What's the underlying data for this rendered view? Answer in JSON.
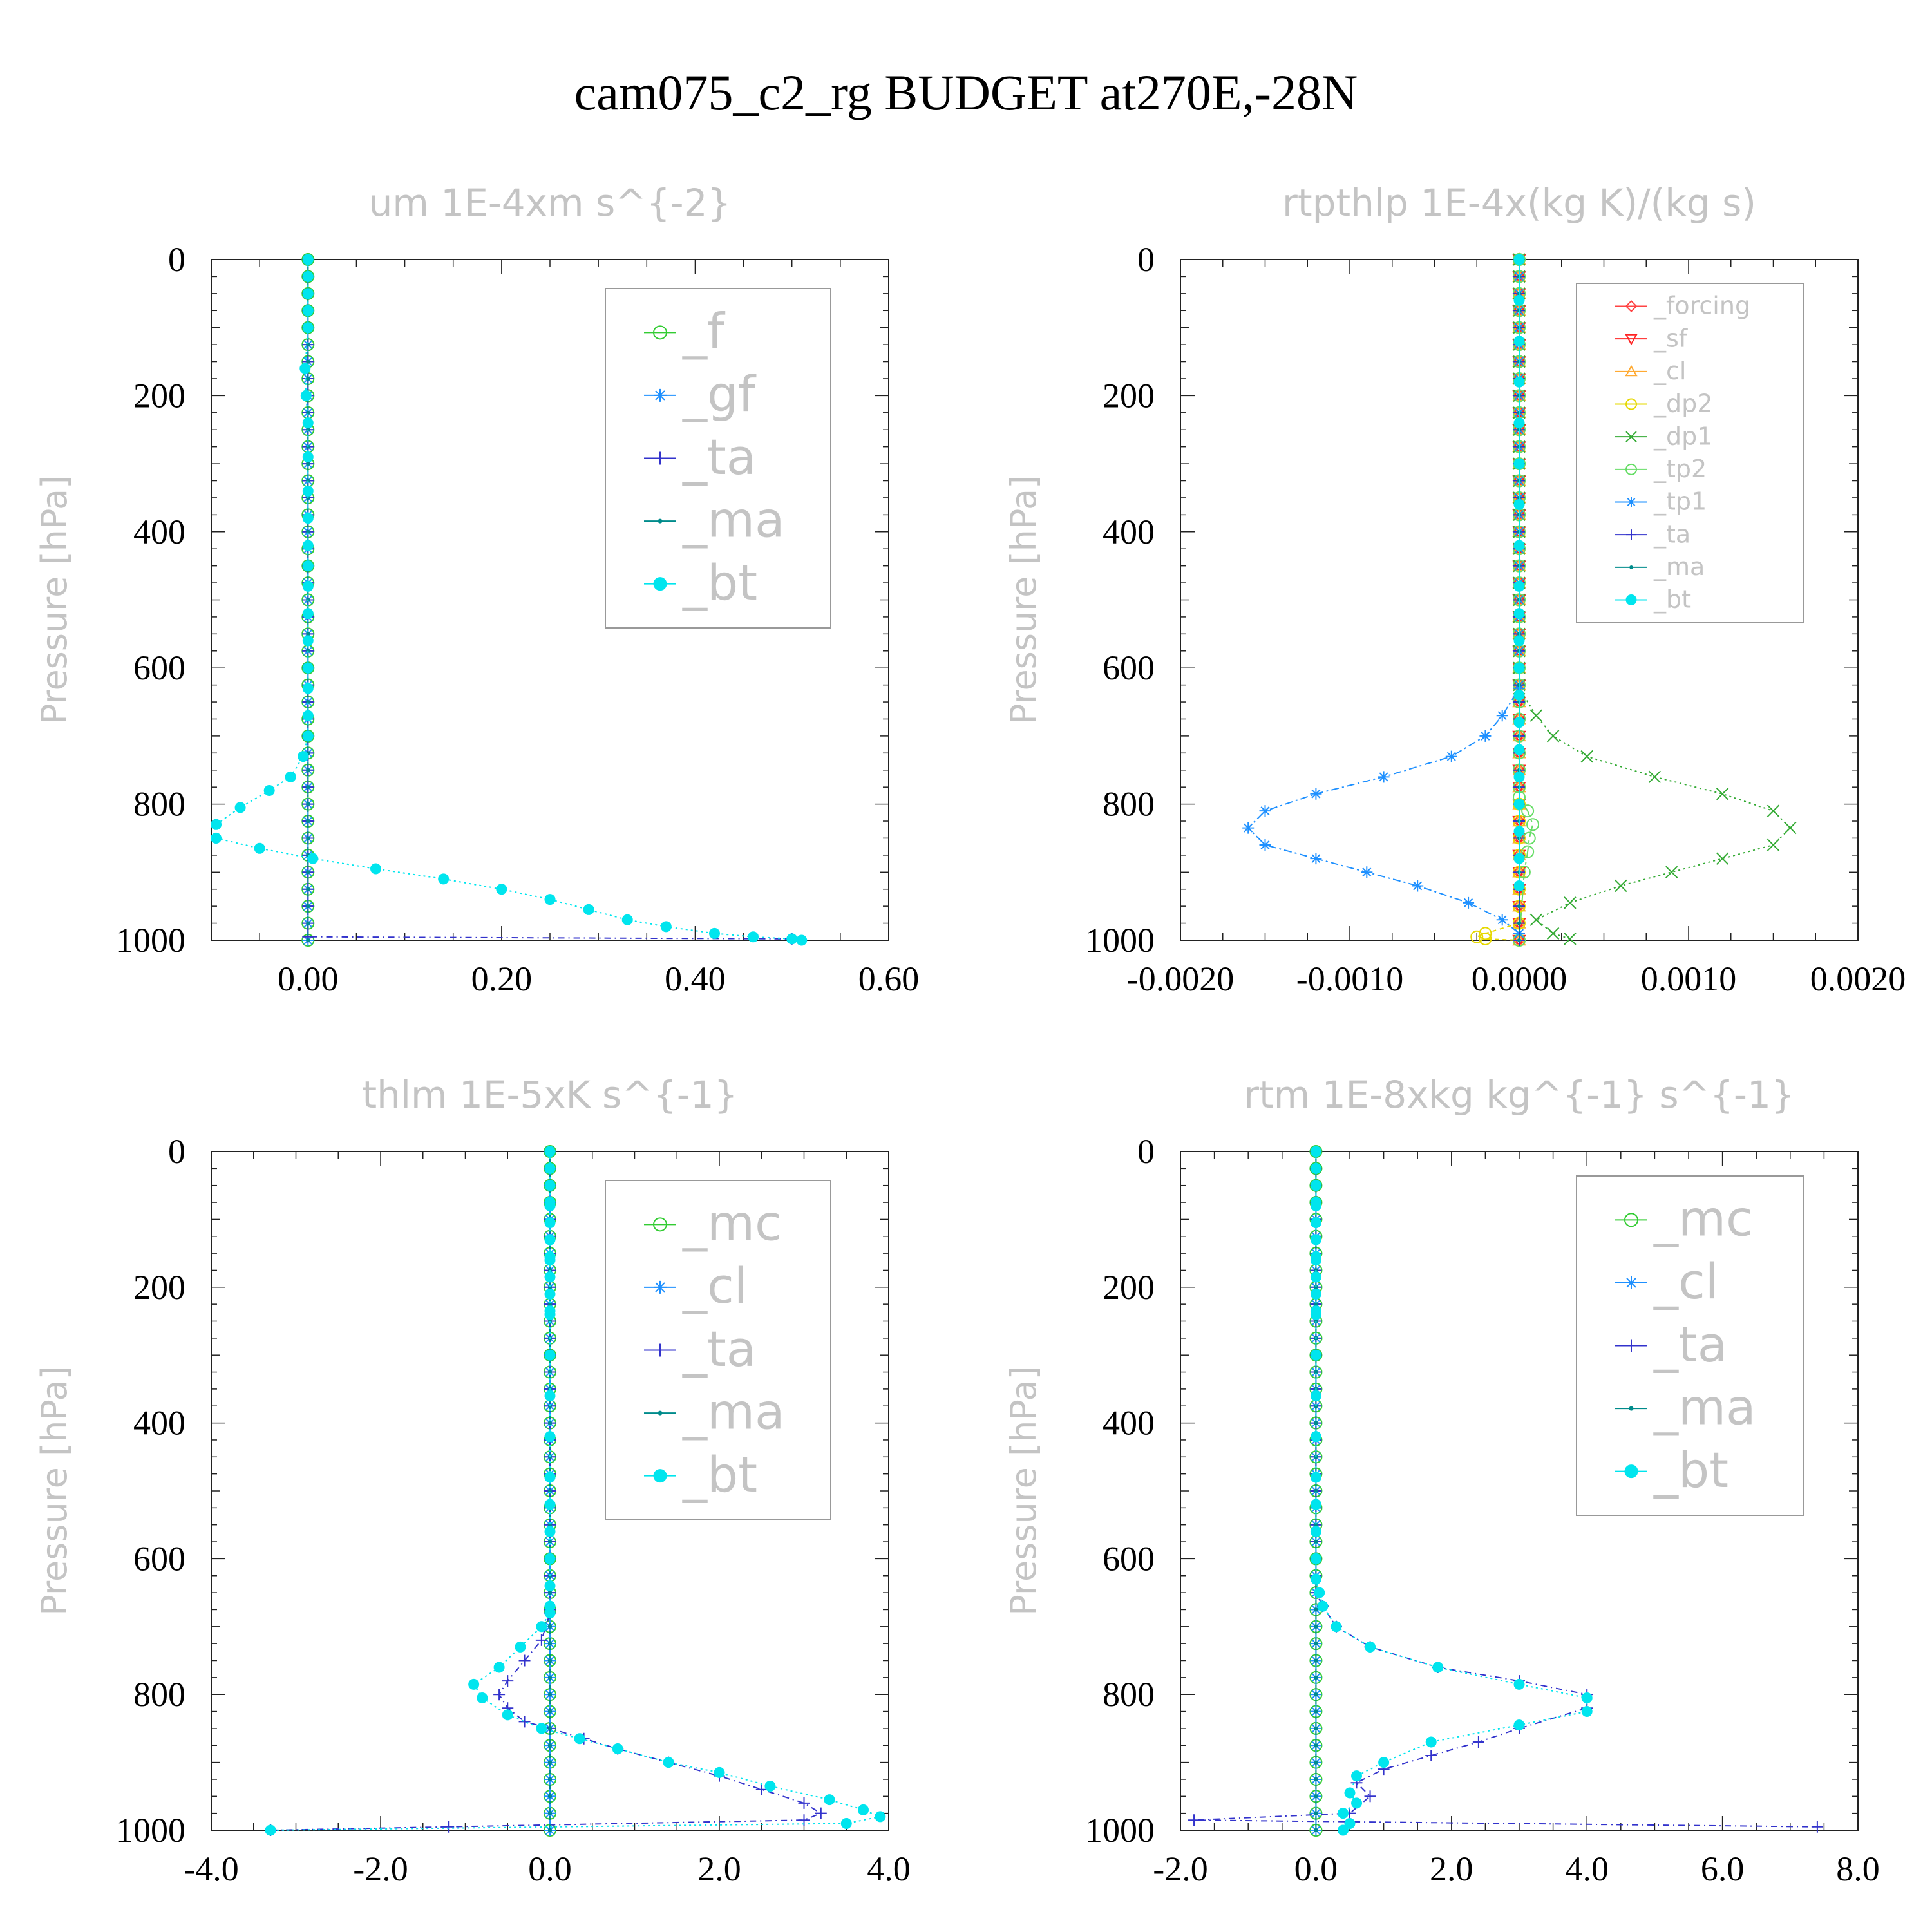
{
  "title": "cam075_c2_rg  BUDGET at270E,-28N",
  "chart_data": [
    {
      "type": "line",
      "title": "um  1E-4xm s^{-2}",
      "ylabel": "Pressure [hPa]",
      "xlim": [
        -0.1,
        0.6
      ],
      "ylim": [
        1000,
        0
      ],
      "xticks": [
        0.0,
        0.2,
        0.4,
        0.6
      ],
      "xtick_labels": [
        "0.00",
        "0.20",
        "0.40",
        "0.60"
      ],
      "yticks": [
        0,
        200,
        400,
        600,
        800,
        1000
      ],
      "ytick_labels": [
        "0",
        "200",
        "400",
        "600",
        "800",
        "1000"
      ],
      "legend_position": "top-right",
      "series": [
        {
          "name": "_f",
          "color": "#33cc33",
          "marker": "circle",
          "x": [
            0,
            0
          ],
          "y": [
            0,
            1000
          ]
        },
        {
          "name": "_gf",
          "color": "#1e90ff",
          "marker": "asterisk",
          "x": [
            0,
            0
          ],
          "y": [
            0,
            1000
          ]
        },
        {
          "name": "_ta",
          "color": "#3333cc",
          "marker": "plus",
          "x": [
            0,
            0,
            0.5
          ],
          "y": [
            0,
            995,
            998
          ]
        },
        {
          "name": "_ma",
          "color": "#008b8b",
          "marker": "dot",
          "x": [
            0,
            0
          ],
          "y": [
            0,
            1000
          ]
        },
        {
          "name": "_bt",
          "color": "#00e5ee",
          "marker": "filled-circle",
          "x": [
            0,
            0,
            -0.003,
            -0.002,
            0,
            0,
            0,
            0,
            0,
            0,
            0,
            0,
            0,
            0,
            0,
            0,
            0,
            -0.005,
            -0.018,
            -0.04,
            -0.07,
            -0.095,
            -0.095,
            -0.05,
            0.005,
            0.07,
            0.14,
            0.2,
            0.25,
            0.29,
            0.33,
            0.37,
            0.42,
            0.46,
            0.5,
            0.51
          ],
          "y": [
            0,
            100,
            160,
            200,
            240,
            290,
            340,
            380,
            420,
            450,
            480,
            520,
            560,
            600,
            630,
            670,
            700,
            730,
            760,
            780,
            805,
            830,
            850,
            865,
            880,
            895,
            910,
            925,
            940,
            955,
            970,
            980,
            990,
            995,
            998,
            1000
          ]
        }
      ]
    },
    {
      "type": "line",
      "title": "rtpthlp  1E-4x(kg K)/(kg s)",
      "ylabel": "Pressure [hPa]",
      "xlim": [
        -0.002,
        0.002
      ],
      "ylim": [
        1000,
        0
      ],
      "xticks": [
        -0.002,
        -0.001,
        0.0,
        0.001,
        0.002
      ],
      "xtick_labels": [
        "-0.0020",
        "-0.0010",
        "0.0000",
        "0.0010",
        "0.0020"
      ],
      "yticks": [
        0,
        200,
        400,
        600,
        800,
        1000
      ],
      "ytick_labels": [
        "0",
        "200",
        "400",
        "600",
        "800",
        "1000"
      ],
      "legend_position": "top-right",
      "series": [
        {
          "name": "_forcing",
          "color": "#ff4444",
          "marker": "diamond",
          "x": [
            0,
            0
          ],
          "y": [
            0,
            1000
          ]
        },
        {
          "name": "_sf",
          "color": "#ff2222",
          "marker": "triangle-down",
          "x": [
            0,
            0
          ],
          "y": [
            0,
            1000
          ]
        },
        {
          "name": "_cl",
          "color": "#ffaa33",
          "marker": "triangle-up",
          "x": [
            0,
            0
          ],
          "y": [
            0,
            1000
          ]
        },
        {
          "name": "_dp2",
          "color": "#e6d800",
          "marker": "circle",
          "x": [
            0,
            0,
            -0.0002,
            -0.00025,
            -0.0002,
            0
          ],
          "y": [
            0,
            975,
            990,
            995,
            998,
            1000
          ]
        },
        {
          "name": "_dp1",
          "color": "#33aa33",
          "marker": "x",
          "x": [
            0,
            0,
            0.0001,
            0.0002,
            0.0004,
            0.0008,
            0.0012,
            0.0015,
            0.0016,
            0.0015,
            0.0012,
            0.0009,
            0.0006,
            0.0003,
            0.0001,
            0.0002,
            0.0003
          ],
          "y": [
            0,
            630,
            670,
            700,
            730,
            760,
            785,
            810,
            835,
            860,
            880,
            900,
            920,
            945,
            970,
            990,
            998
          ]
        },
        {
          "name": "_tp2",
          "color": "#66dd66",
          "marker": "circle",
          "x": [
            0,
            0,
            5e-05,
            8e-05,
            6e-05,
            5e-05,
            3e-05,
            0
          ],
          "y": [
            0,
            790,
            810,
            830,
            850,
            870,
            900,
            1000
          ]
        },
        {
          "name": "_tp1",
          "color": "#1e90ff",
          "marker": "asterisk",
          "x": [
            0,
            0,
            -0.0001,
            -0.0002,
            -0.0004,
            -0.0008,
            -0.0012,
            -0.0015,
            -0.0016,
            -0.0015,
            -0.0012,
            -0.0009,
            -0.0006,
            -0.0003,
            -0.0001,
            0
          ],
          "y": [
            0,
            630,
            670,
            700,
            730,
            760,
            785,
            810,
            835,
            860,
            880,
            900,
            920,
            945,
            970,
            990
          ]
        },
        {
          "name": "_ta",
          "color": "#3333cc",
          "marker": "plus",
          "x": [
            0,
            0
          ],
          "y": [
            0,
            1000
          ]
        },
        {
          "name": "_ma",
          "color": "#008b8b",
          "marker": "dot",
          "x": [
            0,
            0
          ],
          "y": [
            0,
            1000
          ]
        },
        {
          "name": "_bt",
          "color": "#00e5ee",
          "marker": "filled-circle",
          "x": [
            0,
            0,
            0,
            0,
            0,
            0,
            0,
            0,
            0,
            0,
            0,
            0,
            0,
            0,
            0,
            0,
            0,
            0,
            0,
            0
          ],
          "y": [
            0,
            60,
            120,
            180,
            240,
            300,
            360,
            420,
            480,
            520,
            560,
            600,
            640,
            680,
            720,
            760,
            800,
            840,
            880,
            920
          ]
        }
      ]
    },
    {
      "type": "line",
      "title": "thlm  1E-5xK s^{-1}",
      "ylabel": "Pressure [hPa]",
      "xlim": [
        -4.0,
        4.0
      ],
      "ylim": [
        1000,
        0
      ],
      "xticks": [
        -4.0,
        -2.0,
        0.0,
        2.0,
        4.0
      ],
      "xtick_labels": [
        "-4.0",
        "-2.0",
        "0.0",
        "2.0",
        "4.0"
      ],
      "yticks": [
        0,
        200,
        400,
        600,
        800,
        1000
      ],
      "ytick_labels": [
        "0",
        "200",
        "400",
        "600",
        "800",
        "1000"
      ],
      "legend_position": "top-right",
      "series": [
        {
          "name": "_mc",
          "color": "#33cc33",
          "marker": "circle",
          "x": [
            0,
            0
          ],
          "y": [
            0,
            1000
          ]
        },
        {
          "name": "_cl",
          "color": "#1e90ff",
          "marker": "asterisk",
          "x": [
            0,
            0
          ],
          "y": [
            0,
            1000
          ]
        },
        {
          "name": "_ta",
          "color": "#3333cc",
          "marker": "plus",
          "x": [
            0,
            0,
            -0.1,
            -0.3,
            -0.5,
            -0.6,
            -0.5,
            -0.3,
            0,
            0.4,
            0.8,
            1.4,
            2.0,
            2.5,
            3.0,
            3.2,
            3.0,
            -1.2,
            -3.3
          ],
          "y": [
            0,
            680,
            720,
            750,
            780,
            800,
            820,
            840,
            850,
            865,
            880,
            900,
            920,
            940,
            960,
            975,
            985,
            995,
            1000
          ]
        },
        {
          "name": "_ma",
          "color": "#008b8b",
          "marker": "dot",
          "x": [
            0,
            0
          ],
          "y": [
            0,
            1000
          ]
        },
        {
          "name": "_bt",
          "color": "#00e5ee",
          "marker": "filled-circle",
          "x": [
            0,
            0,
            0,
            0,
            0,
            0,
            0,
            0,
            0,
            0,
            0,
            0,
            0,
            0,
            -0.1,
            -0.35,
            -0.6,
            -0.9,
            -0.8,
            -0.5,
            -0.1,
            0.35,
            0.8,
            1.4,
            2.0,
            2.6,
            3.3,
            3.7,
            3.9,
            3.5,
            -3.3
          ],
          "y": [
            0,
            80,
            160,
            240,
            300,
            360,
            420,
            480,
            520,
            560,
            600,
            640,
            670,
            680,
            700,
            730,
            760,
            785,
            805,
            830,
            850,
            865,
            880,
            900,
            915,
            935,
            955,
            970,
            980,
            990,
            1000
          ]
        }
      ]
    },
    {
      "type": "line",
      "title": "rtm  1E-8xkg kg^{-1} s^{-1}",
      "ylabel": "Pressure [hPa]",
      "xlim": [
        -2.0,
        8.0
      ],
      "ylim": [
        1000,
        0
      ],
      "xticks": [
        -2.0,
        0.0,
        2.0,
        4.0,
        6.0,
        8.0
      ],
      "xtick_labels": [
        "-2.0",
        "0.0",
        "2.0",
        "4.0",
        "6.0",
        "8.0"
      ],
      "yticks": [
        0,
        200,
        400,
        600,
        800,
        1000
      ],
      "ytick_labels": [
        "0",
        "200",
        "400",
        "600",
        "800",
        "1000"
      ],
      "legend_position": "top-right",
      "series": [
        {
          "name": "_mc",
          "color": "#33cc33",
          "marker": "circle",
          "x": [
            0,
            0
          ],
          "y": [
            0,
            1000
          ]
        },
        {
          "name": "_cl",
          "color": "#1e90ff",
          "marker": "asterisk",
          "x": [
            0,
            0
          ],
          "y": [
            0,
            1000
          ]
        },
        {
          "name": "_ta",
          "color": "#3333cc",
          "marker": "plus",
          "x": [
            0,
            0,
            0.1,
            0.3,
            0.8,
            1.8,
            3.0,
            4.0,
            4.0,
            3.0,
            2.4,
            1.7,
            1.0,
            0.6,
            0.8,
            0.5,
            -1.8,
            7.4
          ],
          "y": [
            0,
            650,
            670,
            700,
            730,
            760,
            780,
            800,
            820,
            850,
            870,
            890,
            910,
            930,
            950,
            975,
            985,
            995
          ]
        },
        {
          "name": "_ma",
          "color": "#008b8b",
          "marker": "dot",
          "x": [
            0,
            0
          ],
          "y": [
            0,
            1000
          ]
        },
        {
          "name": "_bt",
          "color": "#00e5ee",
          "marker": "filled-circle",
          "x": [
            0,
            0,
            0,
            0,
            0,
            0,
            0,
            0,
            0,
            0,
            0,
            0,
            0.05,
            0.1,
            0.3,
            0.8,
            1.8,
            3.0,
            4.0,
            4.0,
            3.0,
            1.7,
            1.0,
            0.6,
            0.5,
            0.6,
            0.4,
            0.5,
            0.4
          ],
          "y": [
            0,
            80,
            160,
            240,
            300,
            360,
            420,
            480,
            520,
            560,
            600,
            630,
            650,
            670,
            700,
            730,
            760,
            785,
            805,
            825,
            845,
            870,
            900,
            920,
            945,
            960,
            975,
            990,
            1000
          ]
        }
      ]
    }
  ]
}
